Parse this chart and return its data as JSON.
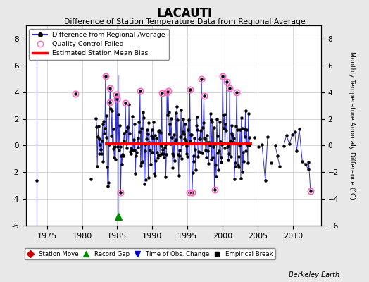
{
  "title": "LACAUTI",
  "subtitle": "Difference of Station Temperature Data from Regional Average",
  "ylabel": "Monthly Temperature Anomaly Difference (°C)",
  "xlabel_note": "Berkeley Earth",
  "xlim": [
    1972,
    2014
  ],
  "ylim": [
    -6,
    9
  ],
  "yticks": [
    -6,
    -4,
    -2,
    0,
    2,
    4,
    6,
    8
  ],
  "xticks": [
    1975,
    1980,
    1985,
    1990,
    1995,
    2000,
    2005,
    2010
  ],
  "bias_level": 0.15,
  "bias_start": 1983.5,
  "bias_end": 2004.0,
  "record_gap_x": 1985.2,
  "record_gap_y": -5.3,
  "early_vline_x": 1973.5,
  "background_color": "#e8e8e8",
  "plot_bg_color": "#ffffff",
  "grid_color": "#c8c8c8",
  "line_color": "#3333cc",
  "dot_color": "#000000",
  "qc_color": "#ff66bb",
  "bias_color": "#ff0000",
  "vline_color": "#aaaaff",
  "seed": 42
}
